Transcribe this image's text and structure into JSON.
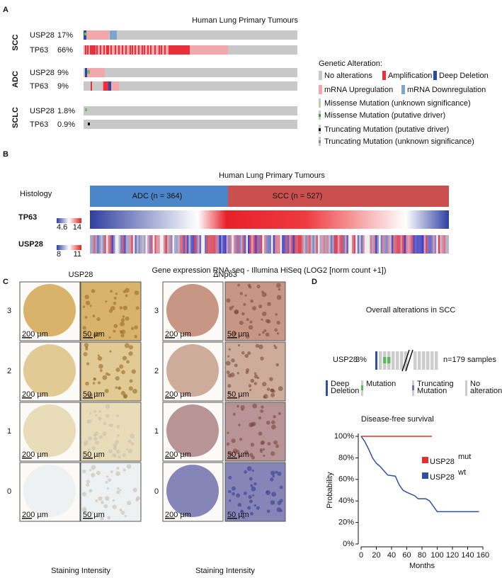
{
  "panel_a": {
    "label": "A",
    "title": "Human Lung  Primary Tumours",
    "groups": [
      {
        "name": "SCC",
        "genes": [
          {
            "gene": "USP28",
            "percent": "17%"
          },
          {
            "gene": "TP63",
            "percent": "66%"
          }
        ]
      },
      {
        "name": "ADC",
        "genes": [
          {
            "gene": "USP28",
            "percent": "9%"
          },
          {
            "gene": "TP63",
            "percent": "9%"
          }
        ]
      },
      {
        "name": "SCLC",
        "genes": [
          {
            "gene": "USP28",
            "percent": "1.8%"
          },
          {
            "gene": "TP63",
            "percent": "0.9%"
          }
        ]
      }
    ],
    "legend": {
      "title": "Genetic Alteration:",
      "items": [
        "No alterations",
        "Amplification",
        "Deep Deletion",
        "mRNA Upregulation",
        "mRNA Downregulation",
        "Missense Mutation (unknown significance)",
        "Missense Mutation (putative driver)",
        "Truncating Mutation (putative driver)",
        "Truncating Mutation (unknown significance)"
      ]
    }
  },
  "panel_b": {
    "label": "B",
    "title": "Human Lung  Primary Tumours",
    "histology": "Histology",
    "adc": "ADC (n = 364)",
    "scc": "SCC (n = 527)",
    "rows": [
      {
        "gene": "TP63",
        "scale": [
          "4.6",
          "14"
        ]
      },
      {
        "gene": "USP28",
        "scale": [
          "8",
          "11"
        ]
      }
    ],
    "caption": "Gene expression RNA-seq - Illumina HiSeq (LOG2 [norm count +1])"
  },
  "panel_c": {
    "label": "C",
    "columns": [
      {
        "title": "USP28",
        "x_label": "Staining Intensity"
      },
      {
        "title": "ΔNp63",
        "x_label": "Staining Intensity"
      }
    ],
    "rows": [
      "3",
      "2",
      "1",
      "0"
    ],
    "scale_bars": [
      "200 µm",
      "50 µm"
    ]
  },
  "panel_d": {
    "label": "D",
    "title": "Overall alterations in SCC",
    "oncoprint": {
      "gene": "USP28",
      "percent": "3%",
      "samples": "n=179 samples"
    },
    "legend": [
      [
        "Deep",
        "Deletion"
      ],
      [
        "Mutation"
      ],
      [
        "Truncating",
        "Mutation"
      ],
      [
        "No",
        "alteration"
      ]
    ]
  },
  "chart_data": {
    "type": "line",
    "title": "Disease-free survival",
    "x_label": "Months",
    "y_label": "Probability",
    "xlim": [
      0,
      160
    ],
    "ylim": [
      0,
      100
    ],
    "xticks": [
      0,
      20,
      40,
      60,
      80,
      100,
      120,
      140,
      160
    ],
    "yticks": [
      {
        "value": 0,
        "label": "0%"
      },
      {
        "value": 20,
        "label": "20%"
      },
      {
        "value": 40,
        "label": "40%"
      },
      {
        "value": 60,
        "label": "60%"
      },
      {
        "value": 80,
        "label": "80%"
      },
      {
        "value": 100,
        "label": "100%"
      }
    ],
    "series": [
      {
        "name": "USP28",
        "superscript": "mut",
        "color": "#e03030",
        "x": [
          0,
          93
        ],
        "values": [
          100,
          100
        ]
      },
      {
        "name": "USP28",
        "superscript": "wt",
        "color": "#2f4fa0",
        "x": [
          0,
          5,
          10,
          15,
          20,
          25,
          30,
          35,
          45,
          50,
          55,
          60,
          70,
          75,
          85,
          90,
          100,
          155
        ],
        "values": [
          100,
          95,
          88,
          80,
          75,
          72,
          68,
          64,
          63,
          55,
          50,
          48,
          45,
          42,
          42,
          40,
          30,
          30
        ]
      }
    ]
  }
}
